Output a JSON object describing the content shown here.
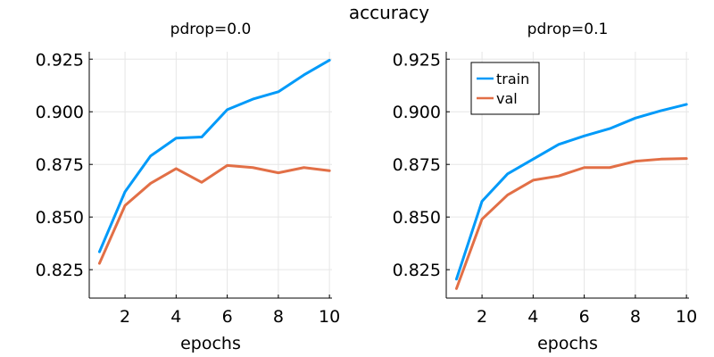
{
  "figure_title": "accuracy",
  "colors": {
    "train": "#009af9",
    "val": "#e26f46"
  },
  "chart_data": [
    {
      "type": "line",
      "title": "pdrop=0.0",
      "xlabel": "epochs",
      "ylabel": "",
      "x": [
        1,
        2,
        3,
        4,
        5,
        6,
        7,
        8,
        9,
        10
      ],
      "xlim": [
        0.6,
        10.1
      ],
      "ylim": [
        0.8115,
        0.9285
      ],
      "xticks": [
        2,
        4,
        6,
        8,
        10
      ],
      "xtick_labels": [
        "2",
        "4",
        "6",
        "8",
        "10"
      ],
      "yticks": [
        0.825,
        0.85,
        0.875,
        0.9,
        0.925
      ],
      "ytick_labels": [
        "0.825",
        "0.850",
        "0.875",
        "0.900",
        "0.925"
      ],
      "grid": true,
      "legend": null,
      "series": [
        {
          "key": "train",
          "values": [
            0.8335,
            0.862,
            0.879,
            0.8875,
            0.888,
            0.901,
            0.906,
            0.9095,
            0.9175,
            0.9245
          ]
        },
        {
          "key": "val",
          "values": [
            0.828,
            0.8555,
            0.866,
            0.873,
            0.8665,
            0.8745,
            0.8735,
            0.871,
            0.8735,
            0.872
          ]
        }
      ]
    },
    {
      "type": "line",
      "title": "pdrop=0.1",
      "xlabel": "epochs",
      "ylabel": "",
      "x": [
        1,
        2,
        3,
        4,
        5,
        6,
        7,
        8,
        9,
        10
      ],
      "xlim": [
        0.6,
        10.1
      ],
      "ylim": [
        0.8115,
        0.9285
      ],
      "xticks": [
        2,
        4,
        6,
        8,
        10
      ],
      "xtick_labels": [
        "2",
        "4",
        "6",
        "8",
        "10"
      ],
      "yticks": [
        0.825,
        0.85,
        0.875,
        0.9,
        0.925
      ],
      "ytick_labels": [
        "0.825",
        "0.850",
        "0.875",
        "0.900",
        "0.925"
      ],
      "grid": true,
      "legend": "top-left",
      "series": [
        {
          "key": "train",
          "name": "train",
          "values": [
            0.8205,
            0.8575,
            0.8705,
            0.8775,
            0.8845,
            0.8885,
            0.892,
            0.897,
            0.9005,
            0.9035
          ]
        },
        {
          "key": "val",
          "name": "val",
          "values": [
            0.816,
            0.849,
            0.8605,
            0.8675,
            0.8695,
            0.8735,
            0.8735,
            0.8765,
            0.8775,
            0.8778
          ]
        }
      ]
    }
  ]
}
